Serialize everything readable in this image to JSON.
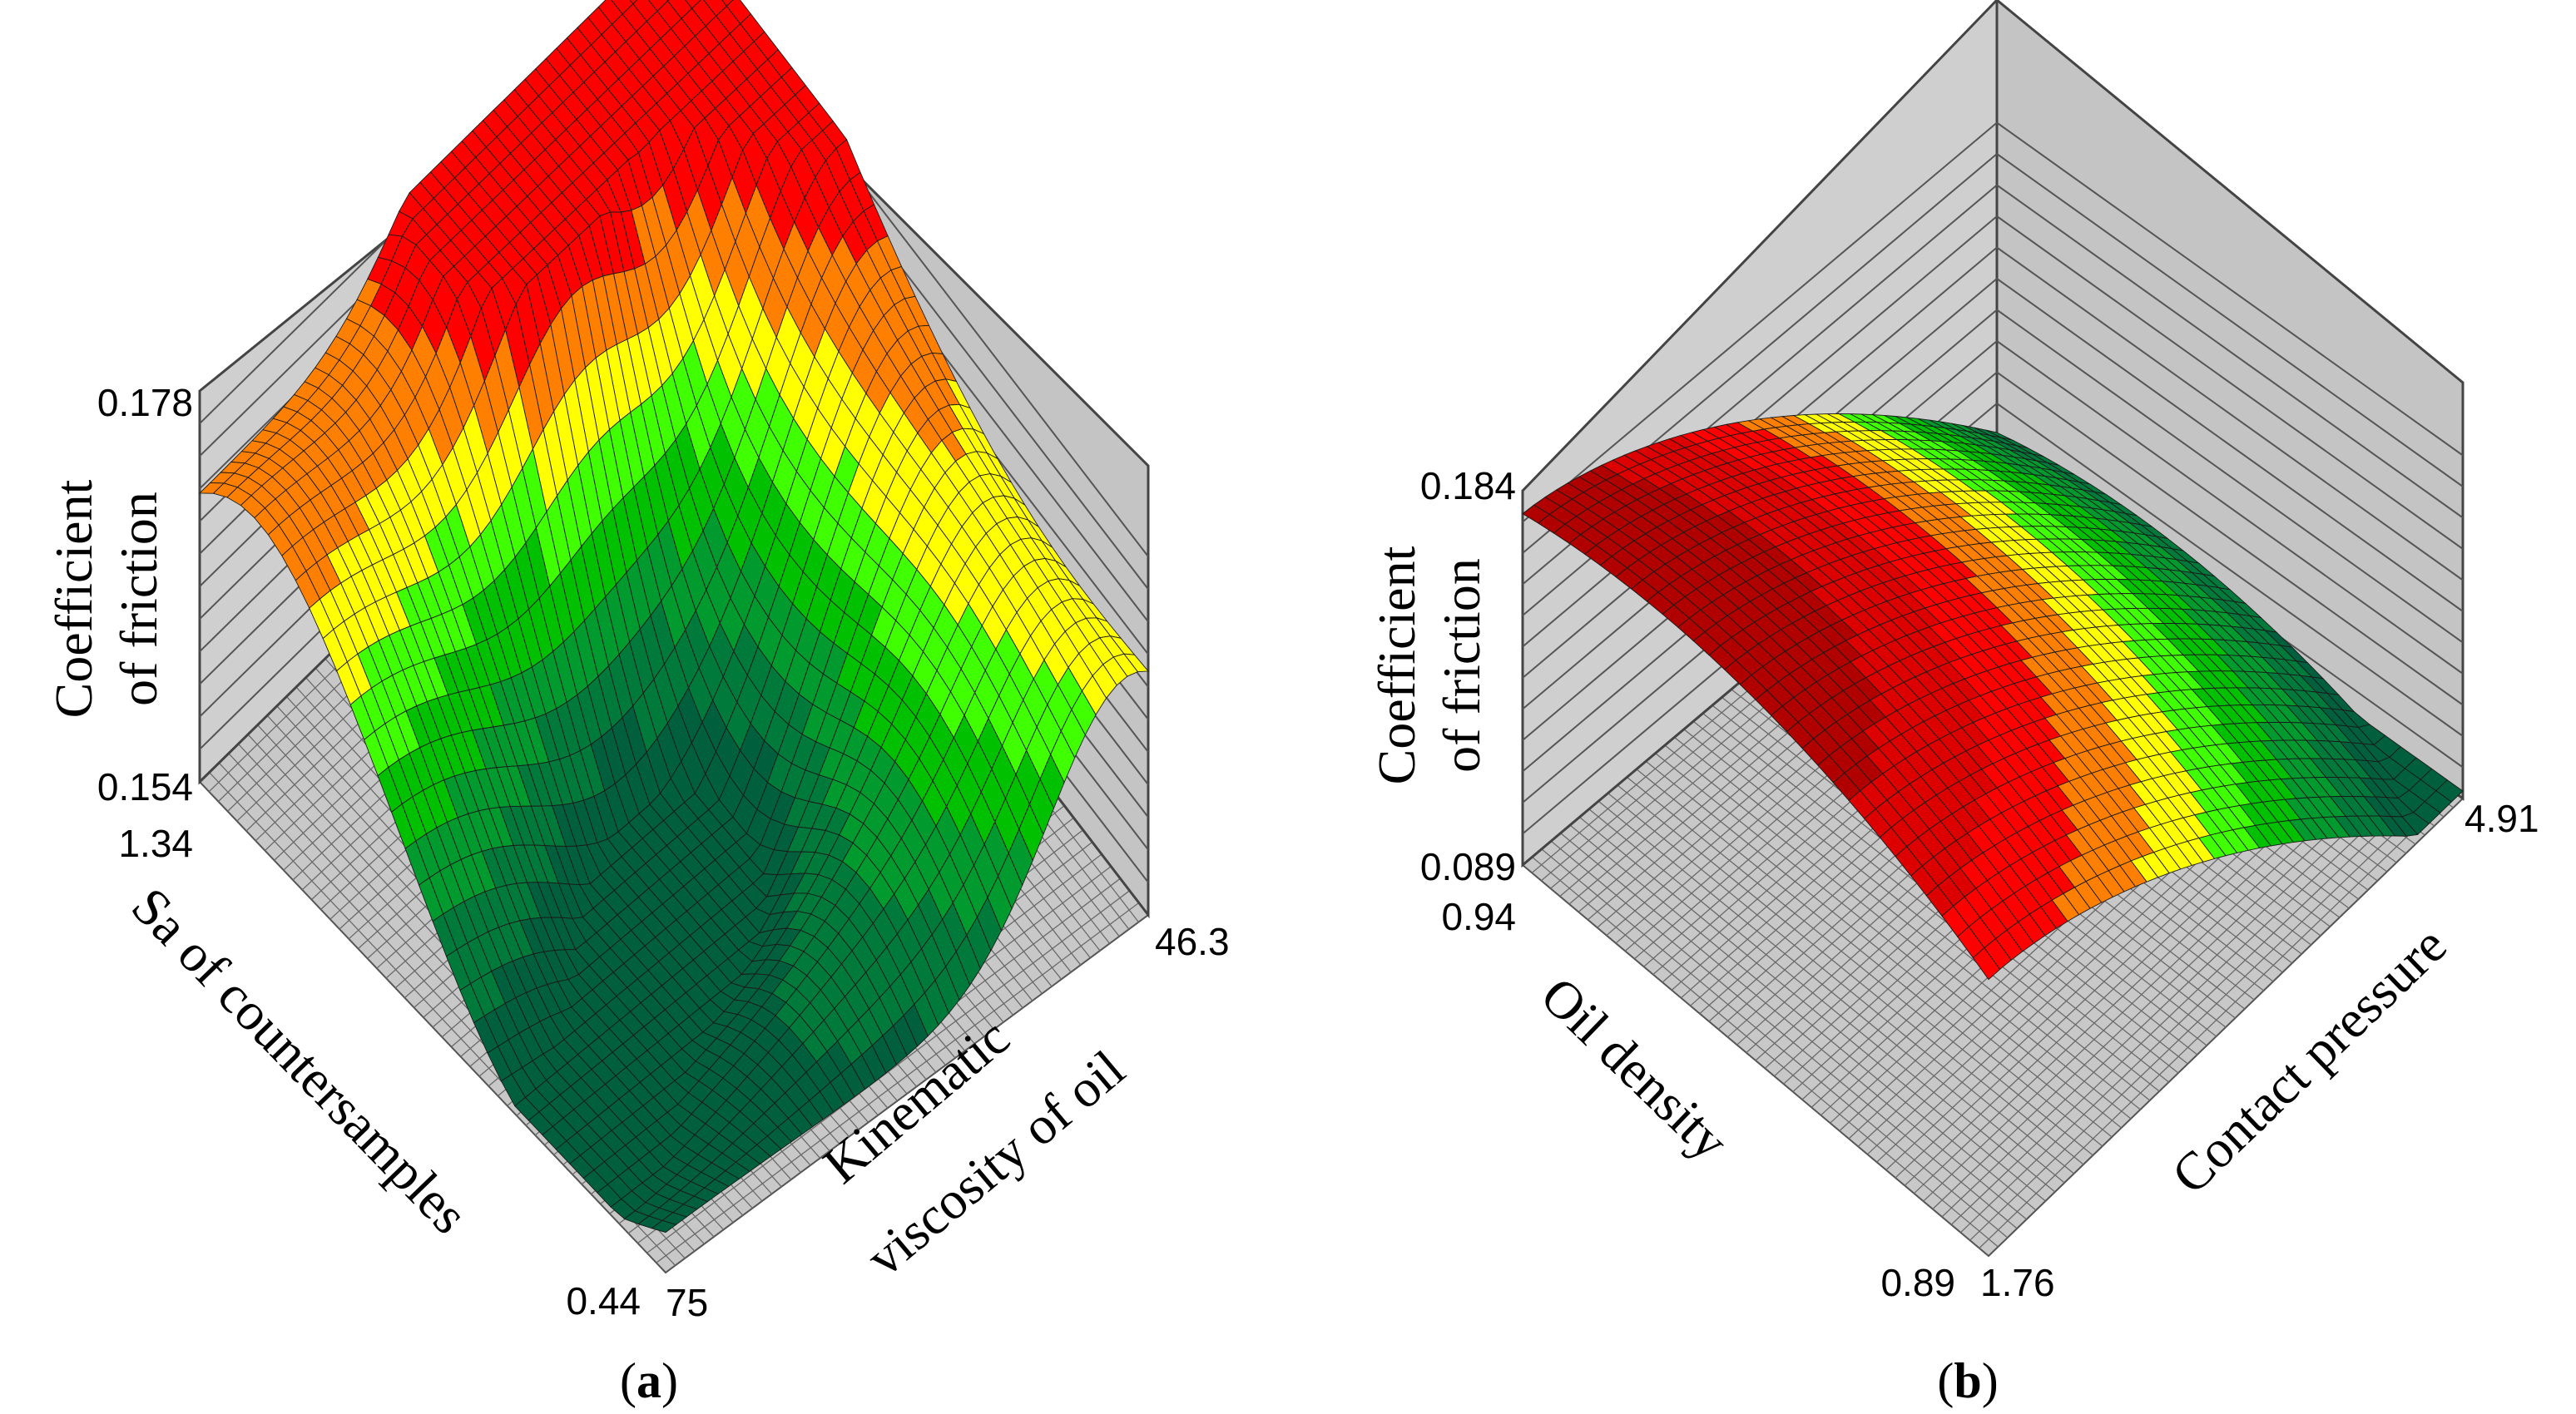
{
  "chart_data": [
    {
      "type": "surface3d",
      "panel_label": "a",
      "zlabel_line1": "Coefficient",
      "zlabel_line2": "of friction",
      "z_axis": {
        "top_value": "0.178",
        "bottom_value": "0.154",
        "range": [
          0.154,
          0.178
        ]
      },
      "x_axis": {
        "label": "Sa of countersamples",
        "ticks": [
          "1.34",
          "0.44"
        ],
        "range": [
          0.44,
          1.34
        ]
      },
      "y_axis": {
        "label_line1": "Kinematic",
        "label_line2": "viscosity of oil",
        "ticks": [
          "75",
          "46.3"
        ],
        "range": [
          46.3,
          75
        ]
      },
      "color_bands": [
        "#005f3c",
        "#007a3a",
        "#009a2e",
        "#00c000",
        "#40ff00",
        "#ffff00",
        "#ff8000",
        "#ff0000"
      ]
    },
    {
      "type": "surface3d",
      "panel_label": "b",
      "zlabel_line1": "Coefficient",
      "zlabel_line2": "of friction",
      "z_axis": {
        "top_value": "0.184",
        "bottom_value": "0.089",
        "range": [
          0.089,
          0.184
        ]
      },
      "x_axis": {
        "label": "Oil density",
        "ticks": [
          "0.94",
          "0.89"
        ],
        "range": [
          0.89,
          0.94
        ]
      },
      "y_axis": {
        "label": "Contact pressure",
        "ticks": [
          "1.76",
          "4.91"
        ],
        "range": [
          1.76,
          4.91
        ]
      },
      "color_bands": [
        "#005f3c",
        "#007a3a",
        "#009a2e",
        "#00c000",
        "#40ff00",
        "#ffff00",
        "#ff8000",
        "#ff0000",
        "#dd0000",
        "#b00000"
      ]
    }
  ]
}
